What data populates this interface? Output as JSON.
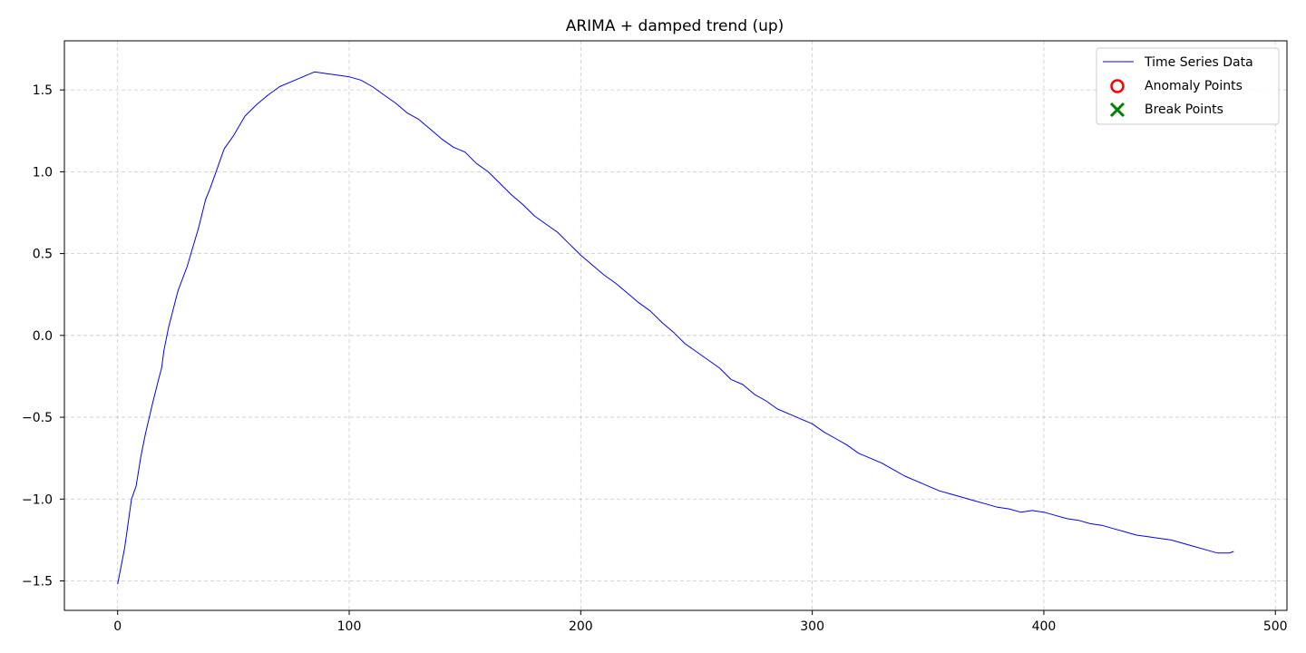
{
  "chart_data": {
    "type": "line",
    "title": "ARIMA + damped trend (up)",
    "xlabel": "",
    "ylabel": "",
    "xlim": [
      -23,
      505
    ],
    "ylim": [
      -1.68,
      1.8
    ],
    "x_ticks": [
      0,
      100,
      200,
      300,
      400,
      500
    ],
    "y_ticks": [
      -1.5,
      -1.0,
      -0.5,
      0.0,
      0.5,
      1.0,
      1.5
    ],
    "x_tick_labels": [
      "0",
      "100",
      "200",
      "300",
      "400",
      "500"
    ],
    "y_tick_labels": [
      "−1.5",
      "−1.0",
      "−0.5",
      "0.0",
      "0.5",
      "1.0",
      "1.5"
    ],
    "grid": true,
    "legend_position": "top-right",
    "legend": [
      {
        "label": "Time Series Data",
        "marker": "line",
        "color": "#0000ff"
      },
      {
        "label": "Anomaly Points",
        "marker": "circle",
        "color": "#ff0000"
      },
      {
        "label": "Break Points",
        "marker": "x",
        "color": "#008000"
      }
    ],
    "series": [
      {
        "name": "Time Series Data",
        "color": "#0000ff",
        "points": [
          [
            0,
            -1.52
          ],
          [
            3,
            -1.3
          ],
          [
            6,
            -1.0
          ],
          [
            8,
            -0.92
          ],
          [
            10,
            -0.74
          ],
          [
            12,
            -0.6
          ],
          [
            15,
            -0.42
          ],
          [
            18,
            -0.25
          ],
          [
            19,
            -0.2
          ],
          [
            20,
            -0.09
          ],
          [
            22,
            0.05
          ],
          [
            24,
            0.16
          ],
          [
            26,
            0.27
          ],
          [
            30,
            0.42
          ],
          [
            35,
            0.66
          ],
          [
            38,
            0.83
          ],
          [
            40,
            0.9
          ],
          [
            43,
            1.02
          ],
          [
            46,
            1.14
          ],
          [
            50,
            1.22
          ],
          [
            55,
            1.34
          ],
          [
            60,
            1.41
          ],
          [
            65,
            1.47
          ],
          [
            70,
            1.52
          ],
          [
            75,
            1.55
          ],
          [
            80,
            1.58
          ],
          [
            85,
            1.61
          ],
          [
            90,
            1.6
          ],
          [
            95,
            1.59
          ],
          [
            100,
            1.58
          ],
          [
            105,
            1.56
          ],
          [
            110,
            1.52
          ],
          [
            115,
            1.47
          ],
          [
            120,
            1.42
          ],
          [
            125,
            1.36
          ],
          [
            130,
            1.32
          ],
          [
            135,
            1.26
          ],
          [
            140,
            1.2
          ],
          [
            145,
            1.15
          ],
          [
            150,
            1.12
          ],
          [
            155,
            1.05
          ],
          [
            160,
            1.0
          ],
          [
            165,
            0.93
          ],
          [
            170,
            0.86
          ],
          [
            175,
            0.8
          ],
          [
            180,
            0.73
          ],
          [
            185,
            0.68
          ],
          [
            190,
            0.63
          ],
          [
            195,
            0.56
          ],
          [
            200,
            0.49
          ],
          [
            205,
            0.43
          ],
          [
            210,
            0.37
          ],
          [
            215,
            0.32
          ],
          [
            220,
            0.26
          ],
          [
            225,
            0.2
          ],
          [
            230,
            0.15
          ],
          [
            235,
            0.08
          ],
          [
            240,
            0.02
          ],
          [
            245,
            -0.05
          ],
          [
            250,
            -0.1
          ],
          [
            255,
            -0.15
          ],
          [
            260,
            -0.2
          ],
          [
            265,
            -0.27
          ],
          [
            270,
            -0.3
          ],
          [
            275,
            -0.36
          ],
          [
            280,
            -0.4
          ],
          [
            285,
            -0.45
          ],
          [
            290,
            -0.48
          ],
          [
            295,
            -0.51
          ],
          [
            300,
            -0.54
          ],
          [
            305,
            -0.59
          ],
          [
            310,
            -0.63
          ],
          [
            315,
            -0.67
          ],
          [
            320,
            -0.72
          ],
          [
            325,
            -0.75
          ],
          [
            330,
            -0.78
          ],
          [
            335,
            -0.82
          ],
          [
            340,
            -0.86
          ],
          [
            345,
            -0.89
          ],
          [
            350,
            -0.92
          ],
          [
            355,
            -0.95
          ],
          [
            360,
            -0.97
          ],
          [
            365,
            -0.99
          ],
          [
            370,
            -1.01
          ],
          [
            375,
            -1.03
          ],
          [
            380,
            -1.05
          ],
          [
            385,
            -1.06
          ],
          [
            390,
            -1.08
          ],
          [
            395,
            -1.07
          ],
          [
            400,
            -1.08
          ],
          [
            405,
            -1.1
          ],
          [
            410,
            -1.12
          ],
          [
            415,
            -1.13
          ],
          [
            420,
            -1.15
          ],
          [
            425,
            -1.16
          ],
          [
            430,
            -1.18
          ],
          [
            435,
            -1.2
          ],
          [
            440,
            -1.22
          ],
          [
            445,
            -1.23
          ],
          [
            450,
            -1.24
          ],
          [
            455,
            -1.25
          ],
          [
            460,
            -1.27
          ],
          [
            465,
            -1.29
          ],
          [
            470,
            -1.31
          ],
          [
            475,
            -1.33
          ],
          [
            480,
            -1.33
          ],
          [
            482,
            -1.32
          ]
        ]
      }
    ],
    "anomaly_points": [],
    "break_points": []
  }
}
